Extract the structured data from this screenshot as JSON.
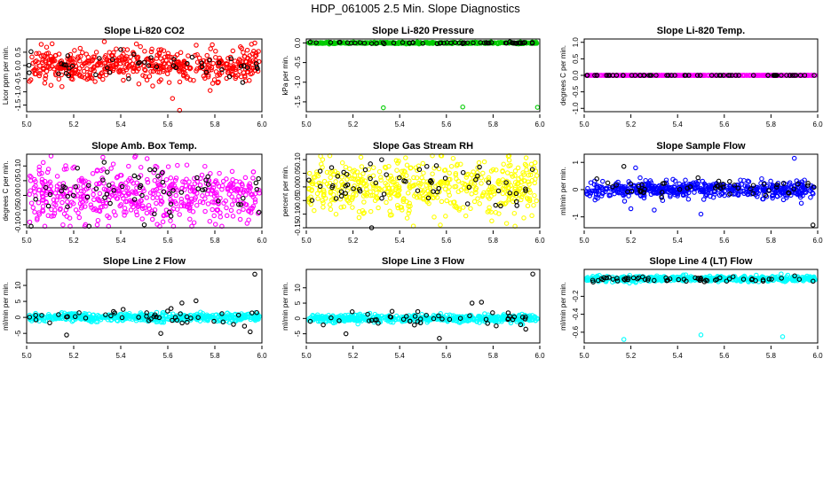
{
  "figure": {
    "title": "HDP_061005  2.5 Min. Slope Diagnostics"
  },
  "chart_data": [
    {
      "type": "scatter",
      "title": "Slope Li-820 CO2",
      "ylabel": "Licor ppm per min.",
      "xlim": [
        5.0,
        6.0
      ],
      "ylim": [
        -1.75,
        1.0
      ],
      "x_ticks": [
        "5.0",
        "5.2",
        "5.4",
        "5.6",
        "5.8",
        "6.0"
      ],
      "y_ticks": [
        "-1.5",
        "-1.0",
        "-0.5",
        "0.0",
        "0.5"
      ],
      "colors": {
        "series": "#ff0000",
        "outliers": "#000000"
      },
      "series_points": {
        "count": 520,
        "center": 0.0,
        "spread": 0.3,
        "extra": [
          [
            5.62,
            -1.25
          ],
          [
            5.78,
            -0.95
          ],
          [
            5.15,
            -0.8
          ],
          [
            5.33,
            0.9
          ],
          [
            5.97,
            0.85
          ],
          [
            5.65,
            -1.7
          ]
        ]
      },
      "outlier_points": {
        "count": 45,
        "center": 0.0,
        "spread": 0.25,
        "extra": [
          [
            5.4,
            0.6
          ]
        ]
      }
    },
    {
      "type": "scatter",
      "title": "Slope Li-820 Pressure",
      "ylabel": "kPa per min.",
      "xlim": [
        5.0,
        6.0
      ],
      "ylim": [
        -1.75,
        0.1
      ],
      "x_ticks": [
        "5.0",
        "5.2",
        "5.4",
        "5.6",
        "5.8",
        "6.0"
      ],
      "y_ticks": [
        "-1.5",
        "-1.0",
        "-0.5",
        "0.0"
      ],
      "colors": {
        "series": "#00cc00",
        "outliers": "#000000"
      },
      "series_points": {
        "count": 400,
        "center": 0.0,
        "spread": 0.01,
        "extra": [
          [
            5.33,
            -1.65
          ],
          [
            5.67,
            -1.63
          ],
          [
            5.99,
            -1.64
          ]
        ]
      },
      "outlier_points": {
        "count": 60,
        "center": 0.0,
        "spread": 0.01,
        "extra": []
      }
    },
    {
      "type": "scatter",
      "title": "Slope Li-820 Temp.",
      "ylabel": "degrees C per min.",
      "xlim": [
        5.0,
        6.0
      ],
      "ylim": [
        -1.1,
        1.1
      ],
      "x_ticks": [
        "5.0",
        "5.2",
        "5.4",
        "5.6",
        "5.8",
        "6.0"
      ],
      "y_ticks": [
        "-1.0",
        "-0.5",
        "0.0",
        "0.5",
        "1.0"
      ],
      "colors": {
        "series": "#ff00ff",
        "outliers": "#000000"
      },
      "series_points": {
        "count": 400,
        "center": 0.0,
        "spread": 0.0,
        "extra": []
      },
      "outlier_points": {
        "count": 60,
        "center": 0.0,
        "spread": 0.0,
        "extra": []
      }
    },
    {
      "type": "scatter",
      "title": "Slope Amb. Box Temp.",
      "ylabel": "degrees C per min.",
      "xlim": [
        5.0,
        6.0
      ],
      "ylim": [
        -0.11,
        0.14
      ],
      "x_ticks": [
        "5.0",
        "5.2",
        "5.4",
        "5.6",
        "5.8",
        "6.0"
      ],
      "y_ticks": [
        "-0.10",
        "-0.05",
        "0.00",
        "0.05",
        "0.10"
      ],
      "colors": {
        "series": "#ff00ff",
        "outliers": "#000000"
      },
      "series_points": {
        "count": 520,
        "center": 0.0,
        "spread": 0.05,
        "extra": [
          [
            5.46,
            0.13
          ],
          [
            5.3,
            -0.1
          ]
        ]
      },
      "outlier_points": {
        "count": 60,
        "center": 0.01,
        "spread": 0.05,
        "extra": [
          [
            5.5,
            -0.1
          ]
        ]
      }
    },
    {
      "type": "scatter",
      "title": "Slope Gas Stream RH",
      "ylabel": "percent per min.",
      "xlim": [
        5.0,
        6.0
      ],
      "ylim": [
        -0.15,
        0.12
      ],
      "x_ticks": [
        "5.0",
        "5.2",
        "5.4",
        "5.6",
        "5.8",
        "6.0"
      ],
      "y_ticks": [
        "-0.15",
        "-0.10",
        "-0.05",
        "0.00",
        "0.05",
        "0.10"
      ],
      "colors": {
        "series": "#ffff00",
        "outliers": "#000000"
      },
      "series_points": {
        "count": 520,
        "center": 0.0,
        "spread": 0.05,
        "extra": [
          [
            5.07,
            0.1
          ]
        ]
      },
      "outlier_points": {
        "count": 60,
        "center": 0.0,
        "spread": 0.04,
        "extra": [
          [
            5.28,
            -0.15
          ]
        ]
      }
    },
    {
      "type": "scatter",
      "title": "Slope Sample Flow",
      "ylabel": "ml/min per min.",
      "xlim": [
        5.0,
        6.0
      ],
      "ylim": [
        -1.4,
        1.3
      ],
      "x_ticks": [
        "5.0",
        "5.2",
        "5.4",
        "5.6",
        "5.8",
        "6.0"
      ],
      "y_ticks": [
        "-1",
        "0",
        "1"
      ],
      "colors": {
        "series": "#0000ff",
        "outliers": "#000000"
      },
      "series_points": {
        "count": 520,
        "center": 0.0,
        "spread": 0.15,
        "extra": [
          [
            5.2,
            -0.7
          ],
          [
            5.3,
            -0.75
          ],
          [
            5.5,
            -0.9
          ],
          [
            5.9,
            1.15
          ],
          [
            5.93,
            -0.5
          ],
          [
            5.22,
            0.8
          ]
        ]
      },
      "outlier_points": {
        "count": 50,
        "center": 0.05,
        "spread": 0.15,
        "extra": [
          [
            5.17,
            0.85
          ],
          [
            5.98,
            -1.3
          ]
        ]
      }
    },
    {
      "type": "scatter",
      "title": "Slope Line 2 Flow",
      "ylabel": "ml/min per min.",
      "xlim": [
        5.0,
        6.0
      ],
      "ylim": [
        -8,
        15
      ],
      "x_ticks": [
        "5.0",
        "5.2",
        "5.4",
        "5.6",
        "5.8",
        "6.0"
      ],
      "y_ticks": [
        "-5",
        "0",
        "5",
        "10"
      ],
      "colors": {
        "series": "#00ffff",
        "outliers": "#000000"
      },
      "series_points": {
        "count": 520,
        "center": 0.0,
        "spread": 0.6,
        "extra": []
      },
      "outlier_points": {
        "count": 45,
        "center": 0.0,
        "spread": 1.2,
        "extra": [
          [
            5.17,
            -5.5
          ],
          [
            5.66,
            4.5
          ],
          [
            5.72,
            5.2
          ],
          [
            5.97,
            13.5
          ],
          [
            5.95,
            -4.5
          ],
          [
            5.57,
            -5
          ]
        ]
      }
    },
    {
      "type": "scatter",
      "title": "Slope Line 3 Flow",
      "ylabel": "ml/min per min.",
      "xlim": [
        5.0,
        6.0
      ],
      "ylim": [
        -8,
        16
      ],
      "x_ticks": [
        "5.0",
        "5.2",
        "5.4",
        "5.6",
        "5.8",
        "6.0"
      ],
      "y_ticks": [
        "-5",
        "0",
        "5",
        "10"
      ],
      "colors": {
        "series": "#00ffff",
        "outliers": "#000000"
      },
      "series_points": {
        "count": 520,
        "center": 0.0,
        "spread": 0.6,
        "extra": []
      },
      "outlier_points": {
        "count": 45,
        "center": 0.0,
        "spread": 1.2,
        "extra": [
          [
            5.17,
            -5
          ],
          [
            5.57,
            -6.5
          ],
          [
            5.71,
            5
          ],
          [
            5.75,
            5.3
          ],
          [
            5.97,
            14.5
          ],
          [
            5.94,
            -3.5
          ]
        ]
      }
    },
    {
      "type": "scatter",
      "title": "Slope Line 4 (LT) Flow",
      "ylabel": "ml/min per min.",
      "xlim": [
        5.0,
        6.0
      ],
      "ylim": [
        -0.72,
        0.1
      ],
      "x_ticks": [
        "5.0",
        "5.2",
        "5.4",
        "5.6",
        "5.8",
        "6.0"
      ],
      "y_ticks": [
        "-0.6",
        "-0.4",
        "-0.2"
      ],
      "colors": {
        "series": "#00ffff",
        "outliers": "#000000"
      },
      "series_points": {
        "count": 520,
        "center": -0.005,
        "spread": 0.015,
        "extra": [
          [
            5.17,
            -0.68
          ],
          [
            5.5,
            -0.63
          ],
          [
            5.85,
            -0.65
          ]
        ]
      },
      "outlier_points": {
        "count": 60,
        "center": -0.01,
        "spread": 0.015,
        "extra": []
      }
    }
  ]
}
